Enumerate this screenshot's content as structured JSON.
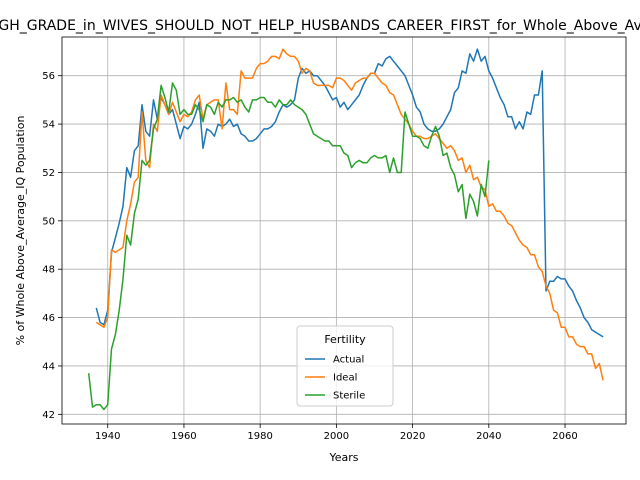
{
  "chart_data": {
    "type": "line",
    "title": "HIGH_GRADE_in_WIVES_SHOULD_NOT_HELP_HUSBANDS_CAREER_FIRST_for_Whole_Above_Average_IQ",
    "xlabel": "Years",
    "ylabel": "% of Whole Above_Average_IQ Population",
    "xlim": [
      1928,
      2076
    ],
    "ylim": [
      41.6,
      57.6
    ],
    "xticks": [
      1940,
      1960,
      1980,
      2000,
      2020,
      2040,
      2060
    ],
    "yticks": [
      42,
      44,
      46,
      48,
      50,
      52,
      54,
      56
    ],
    "grid": true,
    "legend": {
      "title": "Fertility",
      "position": "lower center"
    },
    "series": [
      {
        "name": "Actual",
        "color": "#1f77b4",
        "x": [
          1937,
          1938,
          1939,
          1940,
          1941,
          1942,
          1943,
          1944,
          1945,
          1946,
          1947,
          1948,
          1949,
          1950,
          1951,
          1952,
          1953,
          1954,
          1955,
          1956,
          1957,
          1958,
          1959,
          1960,
          1961,
          1962,
          1963,
          1964,
          1965,
          1966,
          1967,
          1968,
          1969,
          1970,
          1971,
          1972,
          1973,
          1974,
          1975,
          1976,
          1977,
          1978,
          1979,
          1980,
          1981,
          1982,
          1983,
          1984,
          1985,
          1986,
          1987,
          1988,
          1989,
          1990,
          1991,
          1992,
          1993,
          1994,
          1995,
          1996,
          1997,
          1998,
          1999,
          2000,
          2001,
          2002,
          2003,
          2004,
          2005,
          2006,
          2007,
          2008,
          2009,
          2010,
          2011,
          2012,
          2013,
          2014,
          2015,
          2016,
          2017,
          2018,
          2019,
          2020,
          2021,
          2022,
          2023,
          2024,
          2025,
          2026,
          2027,
          2028,
          2029,
          2030,
          2031,
          2032,
          2033,
          2034,
          2035,
          2036,
          2037,
          2038,
          2039,
          2040,
          2041,
          2042,
          2043,
          2044,
          2045,
          2046,
          2047,
          2048,
          2049,
          2050,
          2051,
          2052,
          2053,
          2054,
          2055,
          2056,
          2057,
          2058,
          2059,
          2060,
          2061,
          2062,
          2063,
          2064,
          2065,
          2066,
          2067,
          2068,
          2069,
          2070
        ],
        "values": [
          46.4,
          45.8,
          45.7,
          46.3,
          48.7,
          49.3,
          49.9,
          50.6,
          52.2,
          51.8,
          52.9,
          53.1,
          54.8,
          53.7,
          53.5,
          55.0,
          54.2,
          55.1,
          54.8,
          54.4,
          54.6,
          54.0,
          53.4,
          53.9,
          53.8,
          54.0,
          54.4,
          54.9,
          53.0,
          53.8,
          53.7,
          53.5,
          54.0,
          53.9,
          54.0,
          54.2,
          53.9,
          54.0,
          53.6,
          53.5,
          53.3,
          53.3,
          53.4,
          53.6,
          53.8,
          53.8,
          53.9,
          54.1,
          54.5,
          54.8,
          54.7,
          54.8,
          55.0,
          55.9,
          56.3,
          56.1,
          56.2,
          56.0,
          56.0,
          55.8,
          55.6,
          55.3,
          55.0,
          55.1,
          54.7,
          54.9,
          54.6,
          54.8,
          55.0,
          55.2,
          55.6,
          55.9,
          56.1,
          56.1,
          56.5,
          56.4,
          56.7,
          56.8,
          56.6,
          56.4,
          56.2,
          56.0,
          55.6,
          55.2,
          54.7,
          54.5,
          54.0,
          53.8,
          53.7,
          53.7,
          53.8,
          54.0,
          54.3,
          54.6,
          55.3,
          55.5,
          56.2,
          56.1,
          56.9,
          56.6,
          57.1,
          56.6,
          56.8,
          56.2,
          55.9,
          55.5,
          55.1,
          54.8,
          54.3,
          54.3,
          53.8,
          54.1,
          53.8,
          54.5,
          54.4,
          55.2,
          55.2,
          56.2,
          47.1,
          47.5,
          47.5,
          47.7,
          47.6,
          47.6,
          47.3,
          47.1,
          46.7,
          46.4,
          46.0,
          45.8,
          45.5,
          45.4,
          45.3,
          45.2
        ]
      },
      {
        "name": "Ideal",
        "color": "#ff7f0e",
        "x": [
          1937,
          1938,
          1939,
          1940,
          1941,
          1942,
          1943,
          1944,
          1945,
          1946,
          1947,
          1948,
          1949,
          1950,
          1951,
          1952,
          1953,
          1954,
          1955,
          1956,
          1957,
          1958,
          1959,
          1960,
          1961,
          1962,
          1963,
          1964,
          1965,
          1966,
          1967,
          1968,
          1969,
          1970,
          1971,
          1972,
          1973,
          1974,
          1975,
          1976,
          1977,
          1978,
          1979,
          1980,
          1981,
          1982,
          1983,
          1984,
          1985,
          1986,
          1987,
          1988,
          1989,
          1990,
          1991,
          1992,
          1993,
          1994,
          1995,
          1996,
          1997,
          1998,
          1999,
          2000,
          2001,
          2002,
          2003,
          2004,
          2005,
          2006,
          2007,
          2008,
          2009,
          2010,
          2011,
          2012,
          2013,
          2014,
          2015,
          2016,
          2017,
          2018,
          2019,
          2020,
          2021,
          2022,
          2023,
          2024,
          2025,
          2026,
          2027,
          2028,
          2029,
          2030,
          2031,
          2032,
          2033,
          2034,
          2035,
          2036,
          2037,
          2038,
          2039,
          2040,
          2041,
          2042,
          2043,
          2044,
          2045,
          2046,
          2047,
          2048,
          2049,
          2050,
          2051,
          2052,
          2053,
          2054,
          2055,
          2056,
          2057,
          2058,
          2059,
          2060,
          2061,
          2062,
          2063,
          2064,
          2065,
          2066,
          2067,
          2068,
          2069,
          2070
        ],
        "values": [
          45.8,
          45.7,
          45.6,
          46.0,
          48.8,
          48.7,
          48.8,
          48.9,
          50.0,
          50.7,
          51.6,
          51.8,
          54.5,
          52.5,
          52.2,
          54.0,
          53.7,
          55.2,
          54.8,
          54.4,
          54.9,
          54.5,
          54.1,
          54.4,
          54.3,
          54.5,
          55.0,
          55.2,
          54.2,
          54.8,
          54.9,
          55.0,
          55.0,
          53.8,
          55.7,
          54.6,
          54.6,
          54.4,
          56.2,
          55.9,
          55.9,
          55.9,
          56.3,
          56.5,
          56.5,
          56.6,
          56.8,
          56.8,
          56.7,
          57.1,
          56.9,
          56.8,
          56.8,
          56.6,
          56.1,
          56.3,
          56.2,
          55.7,
          55.6,
          55.6,
          55.6,
          55.6,
          55.5,
          55.9,
          55.9,
          55.8,
          55.6,
          55.4,
          55.7,
          55.8,
          55.9,
          55.9,
          56.1,
          56.1,
          55.9,
          55.7,
          55.6,
          55.3,
          55.2,
          54.8,
          54.4,
          54.2,
          54.0,
          53.7,
          53.5,
          53.5,
          53.4,
          53.4,
          53.5,
          53.6,
          53.4,
          53.2,
          53.0,
          53.1,
          52.9,
          52.5,
          52.6,
          52.0,
          52.3,
          51.7,
          51.8,
          51.4,
          51.3,
          50.6,
          50.7,
          50.4,
          50.4,
          50.2,
          49.9,
          49.8,
          49.5,
          49.2,
          49.0,
          48.9,
          48.6,
          48.6,
          48.1,
          47.9,
          47.3,
          47.0,
          46.3,
          46.2,
          45.6,
          45.6,
          45.2,
          45.2,
          44.9,
          44.8,
          44.8,
          44.5,
          44.5,
          43.9,
          44.1,
          43.4
        ]
      },
      {
        "name": "Sterile",
        "color": "#2ca02c",
        "x": [
          1935,
          1936,
          1937,
          1938,
          1939,
          1940,
          1941,
          1942,
          1943,
          1944,
          1945,
          1946,
          1947,
          1948,
          1949,
          1950,
          1951,
          1952,
          1953,
          1954,
          1955,
          1956,
          1957,
          1958,
          1959,
          1960,
          1961,
          1962,
          1963,
          1964,
          1965,
          1966,
          1967,
          1968,
          1969,
          1970,
          1971,
          1972,
          1973,
          1974,
          1975,
          1976,
          1977,
          1978,
          1979,
          1980,
          1981,
          1982,
          1983,
          1984,
          1985,
          1986,
          1987,
          1988,
          1989,
          1990,
          1991,
          1992,
          1993,
          1994,
          1995,
          1996,
          1997,
          1998,
          1999,
          2000,
          2001,
          2002,
          2003,
          2004,
          2005,
          2006,
          2007,
          2008,
          2009,
          2010,
          2011,
          2012,
          2013,
          2014,
          2015,
          2016,
          2017,
          2018,
          2019,
          2020,
          2021,
          2022,
          2023,
          2024,
          2025,
          2026,
          2027,
          2028,
          2029,
          2030,
          2031,
          2032,
          2033,
          2034,
          2035,
          2036,
          2037,
          2038,
          2039,
          2040
        ],
        "values": [
          43.7,
          42.3,
          42.4,
          42.4,
          42.2,
          42.4,
          44.7,
          45.3,
          46.3,
          47.6,
          49.4,
          49.0,
          50.3,
          50.9,
          52.5,
          52.3,
          52.5,
          53.8,
          54.2,
          55.6,
          55.1,
          54.5,
          55.7,
          55.4,
          54.4,
          54.6,
          54.4,
          54.4,
          54.8,
          54.6,
          54.1,
          54.8,
          54.7,
          54.4,
          54.9,
          54.7,
          55.0,
          55.0,
          55.1,
          54.9,
          55.0,
          54.7,
          54.5,
          55.0,
          55.0,
          55.1,
          55.1,
          54.9,
          54.9,
          54.7,
          55.0,
          54.8,
          54.8,
          55.0,
          54.8,
          54.7,
          54.6,
          54.4,
          54.0,
          53.6,
          53.5,
          53.4,
          53.3,
          53.3,
          53.1,
          53.1,
          53.1,
          52.8,
          52.7,
          52.2,
          52.4,
          52.5,
          52.4,
          52.4,
          52.6,
          52.7,
          52.6,
          52.6,
          52.7,
          52.0,
          52.6,
          52.0,
          52.0,
          54.5,
          54.0,
          53.5,
          53.5,
          53.4,
          53.1,
          53.0,
          53.5,
          53.9,
          53.5,
          52.7,
          52.8,
          52.2,
          51.9,
          51.2,
          51.5,
          50.1,
          51.1,
          50.8,
          50.2,
          51.5,
          51.0,
          52.5
        ]
      }
    ]
  }
}
